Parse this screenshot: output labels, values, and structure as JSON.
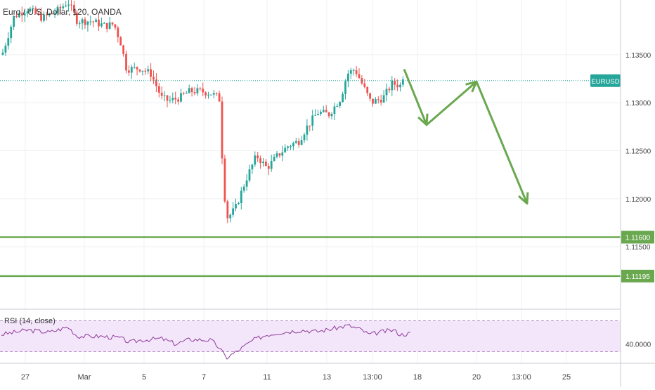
{
  "header": {
    "title": "Euro / U.S. Dollar, 120, OANDA"
  },
  "rsi": {
    "label": "RSI (14, close)",
    "value_label": "40.0000",
    "upper": 70,
    "lower": 30,
    "value_axis": "40.0000"
  },
  "price_axis": {
    "ticks": [
      "1.13500",
      "1.13000",
      "1.12500",
      "1.12000",
      "1.11500"
    ],
    "current_tag": "EURUSD",
    "levels": [
      {
        "label": "1.11600",
        "color": "#6aa84f"
      },
      {
        "label": "1.11195",
        "color": "#6aa84f"
      }
    ]
  },
  "time_axis": {
    "ticks": [
      "27",
      "Mar",
      "5",
      "7",
      "11",
      "13",
      "13:00",
      "18",
      "20",
      "13:00",
      "25"
    ]
  },
  "colors": {
    "up": "#26a69a",
    "down": "#ef5350",
    "projection": "#6aa84f",
    "current_line": "#26a69a",
    "rsi_line": "#8e3a96",
    "rsi_band": "#f3e6fb"
  },
  "chart_data": {
    "type": "candlestick",
    "title": "Euro / U.S. Dollar, 120, OANDA",
    "ylim": [
      1.1085,
      1.1407
    ],
    "horizontal_levels": [
      1.116,
      1.11195
    ],
    "current_price": 1.1323,
    "projection_path": [
      1.1335,
      1.1277,
      1.1322,
      1.1195
    ],
    "rsi": {
      "upper": 70,
      "lower": 30,
      "ylim": [
        15,
        85
      ]
    }
  }
}
